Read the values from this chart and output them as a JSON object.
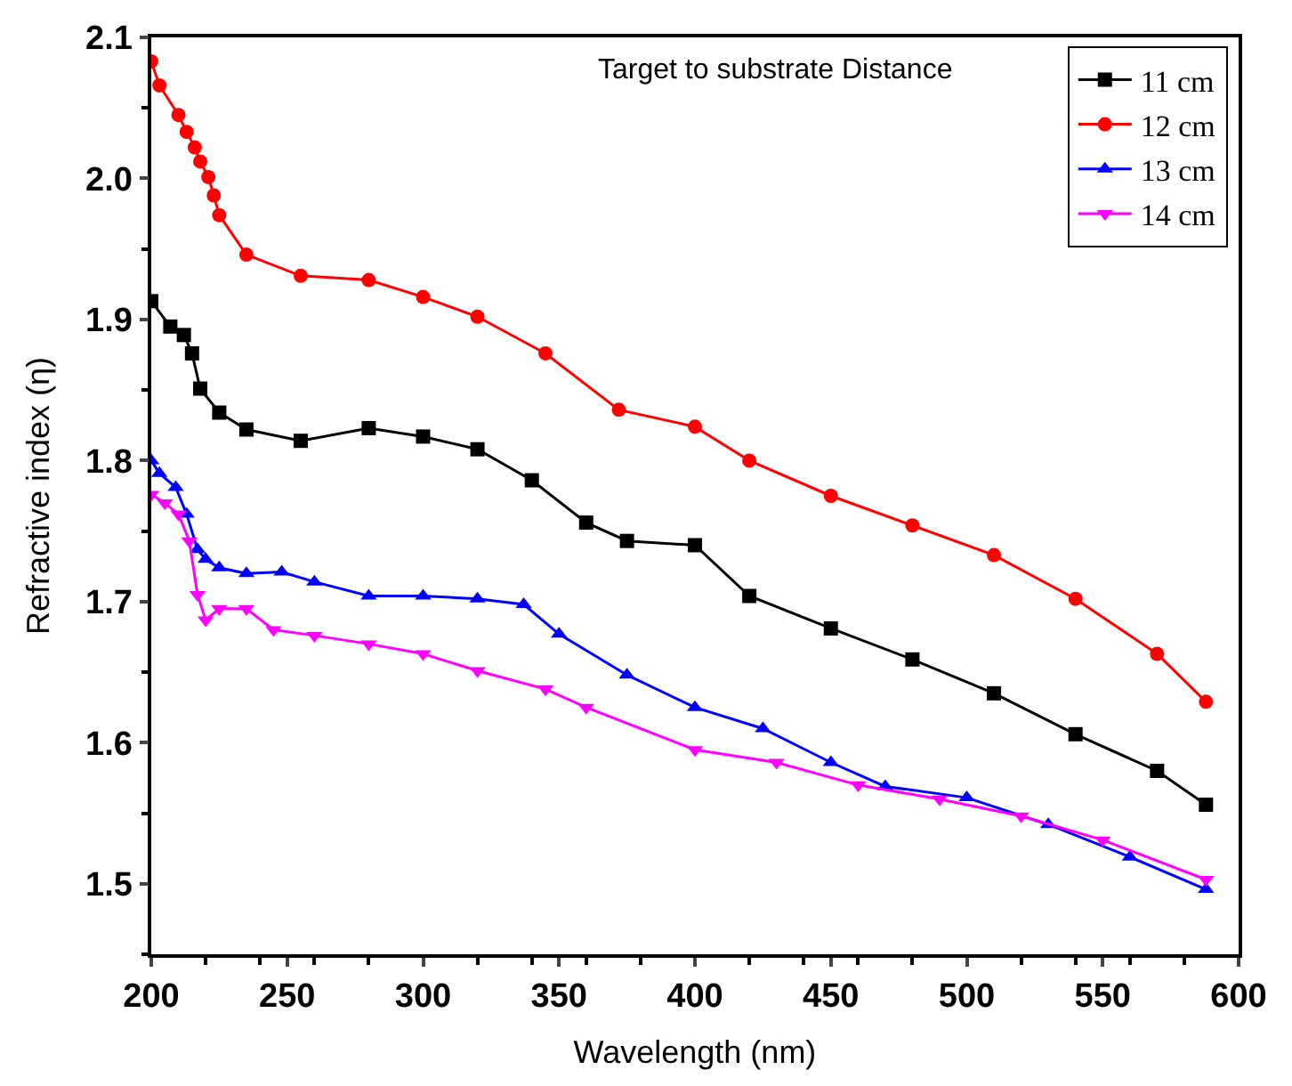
{
  "chart_data": {
    "type": "line",
    "xlabel": "Wavelength (nm)",
    "ylabel": "Refractive index (η)",
    "legend_title": "Target to substrate Distance",
    "xlim": [
      200,
      600
    ],
    "xticks": [
      200,
      250,
      300,
      350,
      400,
      450,
      500,
      550,
      600
    ],
    "ylim": [
      1.45,
      2.1
    ],
    "yticks": [
      1.5,
      1.6,
      1.7,
      1.8,
      1.9,
      {
        "value": 2,
        "label": "2.0"
      },
      2.1
    ],
    "legend": "top right",
    "series": [
      {
        "name": "11 cm",
        "color": "#000000",
        "marker": "square",
        "x": [
          200,
          207,
          212,
          215,
          218,
          225,
          235,
          255,
          280,
          300,
          320,
          340,
          360,
          375,
          400,
          420,
          450,
          480,
          510,
          540,
          570,
          588
        ],
        "values": [
          1.913,
          1.895,
          1.889,
          1.876,
          1.851,
          1.834,
          1.822,
          1.814,
          1.823,
          1.817,
          1.808,
          1.786,
          1.756,
          1.743,
          1.74,
          1.704,
          1.681,
          1.659,
          1.635,
          1.606,
          1.58,
          1.556
        ]
      },
      {
        "name": "12 cm",
        "color": "#ff0000",
        "marker": "circle",
        "x": [
          200,
          203,
          210,
          213,
          216,
          218,
          221,
          223,
          225,
          235,
          255,
          280,
          300,
          320,
          345,
          372,
          400,
          420,
          450,
          480,
          510,
          540,
          570,
          588
        ],
        "values": [
          2.083,
          2.066,
          2.045,
          2.033,
          2.022,
          2.012,
          2.001,
          1.988,
          1.974,
          1.946,
          1.931,
          1.928,
          1.916,
          1.902,
          1.876,
          1.836,
          1.824,
          1.8,
          1.775,
          1.754,
          1.733,
          1.702,
          1.663,
          1.629
        ]
      },
      {
        "name": "13 cm",
        "color": "#0000ff",
        "marker": "triangle",
        "x": [
          200,
          203,
          209,
          213,
          217,
          220,
          225,
          235,
          248,
          260,
          280,
          300,
          320,
          337,
          350,
          375,
          400,
          425,
          450,
          470,
          500,
          530,
          560,
          588
        ],
        "values": [
          1.8,
          1.791,
          1.781,
          1.762,
          1.737,
          1.73,
          1.724,
          1.72,
          1.721,
          1.714,
          1.704,
          1.704,
          1.702,
          1.698,
          1.677,
          1.648,
          1.625,
          1.61,
          1.586,
          1.569,
          1.561,
          1.542,
          1.519,
          1.496
        ]
      },
      {
        "name": "14 cm",
        "color": "#ff00ff",
        "marker": "triangle-down",
        "x": [
          200,
          205,
          210,
          214,
          217,
          220,
          225,
          235,
          245,
          260,
          280,
          300,
          320,
          345,
          360,
          400,
          430,
          460,
          490,
          520,
          550,
          588
        ],
        "values": [
          1.776,
          1.77,
          1.762,
          1.743,
          1.705,
          1.687,
          1.695,
          1.695,
          1.68,
          1.676,
          1.67,
          1.663,
          1.651,
          1.638,
          1.625,
          1.595,
          1.586,
          1.57,
          1.56,
          1.548,
          1.531,
          1.503
        ]
      }
    ]
  }
}
